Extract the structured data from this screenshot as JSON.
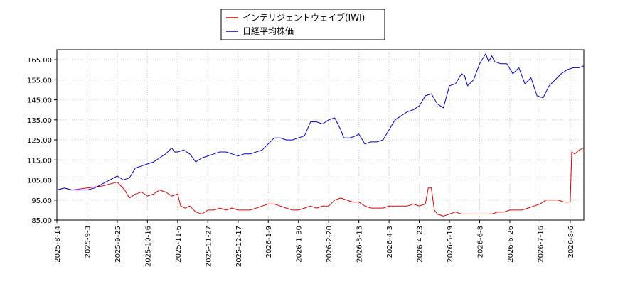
{
  "chart_data": {
    "type": "line",
    "grid": true,
    "legend_position": "top-center",
    "xlabel": "",
    "ylabel": "",
    "ylim": [
      85,
      170
    ],
    "y_ticks": [
      85.0,
      95.0,
      105.0,
      115.0,
      125.0,
      135.0,
      145.0,
      155.0,
      165.0
    ],
    "y_tick_labels": [
      "85.00",
      "95.00",
      "105.00",
      "115.00",
      "125.00",
      "135.00",
      "145.00",
      "155.00",
      "165.00"
    ],
    "x_tick_labels": [
      "2025-8-14",
      "2025-9-3",
      "2025-9-25",
      "2025-10-16",
      "2025-11-6",
      "2025-11-27",
      "2025-12-17",
      "2026-1-9",
      "2026-1-30",
      "2026-2-20",
      "2026-3-13",
      "2026-4-3",
      "2026-4-23",
      "2026-5-19",
      "2026-6-8",
      "2026-6-26",
      "2026-7-16",
      "2026-8-6"
    ],
    "x_tick_index": [
      0,
      20,
      40,
      60,
      80,
      100,
      120,
      140,
      160,
      180,
      200,
      220,
      240,
      260,
      280,
      300,
      320,
      340
    ],
    "x_max_index": 349,
    "series": [
      {
        "name": "インテリジェントウェイブ(IWI)",
        "color": "#dd0000",
        "points": [
          [
            0,
            100
          ],
          [
            5,
            101
          ],
          [
            10,
            100
          ],
          [
            15,
            100.5
          ],
          [
            20,
            101
          ],
          [
            25,
            101.5
          ],
          [
            30,
            102
          ],
          [
            35,
            103
          ],
          [
            40,
            104
          ],
          [
            45,
            100
          ],
          [
            48,
            96
          ],
          [
            52,
            98
          ],
          [
            56,
            99
          ],
          [
            60,
            97
          ],
          [
            64,
            98
          ],
          [
            68,
            100
          ],
          [
            72,
            99
          ],
          [
            76,
            97
          ],
          [
            80,
            98
          ],
          [
            82,
            92
          ],
          [
            85,
            91
          ],
          [
            88,
            92
          ],
          [
            92,
            89
          ],
          [
            96,
            88
          ],
          [
            100,
            90
          ],
          [
            104,
            90
          ],
          [
            108,
            91
          ],
          [
            112,
            90
          ],
          [
            116,
            91
          ],
          [
            120,
            90
          ],
          [
            124,
            90
          ],
          [
            128,
            90
          ],
          [
            132,
            91
          ],
          [
            136,
            92
          ],
          [
            140,
            93
          ],
          [
            144,
            93
          ],
          [
            148,
            92
          ],
          [
            152,
            91
          ],
          [
            156,
            90
          ],
          [
            160,
            90
          ],
          [
            164,
            91
          ],
          [
            168,
            92
          ],
          [
            172,
            91
          ],
          [
            176,
            92
          ],
          [
            180,
            92
          ],
          [
            184,
            95
          ],
          [
            188,
            96
          ],
          [
            192,
            95
          ],
          [
            196,
            94
          ],
          [
            200,
            94
          ],
          [
            204,
            92
          ],
          [
            208,
            91
          ],
          [
            212,
            91
          ],
          [
            216,
            91
          ],
          [
            220,
            92
          ],
          [
            224,
            92
          ],
          [
            228,
            92
          ],
          [
            232,
            92
          ],
          [
            236,
            93
          ],
          [
            240,
            92
          ],
          [
            244,
            93
          ],
          [
            246,
            101
          ],
          [
            248,
            101
          ],
          [
            250,
            90
          ],
          [
            252,
            88
          ],
          [
            256,
            87
          ],
          [
            260,
            88
          ],
          [
            264,
            89
          ],
          [
            268,
            88
          ],
          [
            272,
            88
          ],
          [
            276,
            88
          ],
          [
            280,
            88
          ],
          [
            284,
            88
          ],
          [
            288,
            88
          ],
          [
            292,
            89
          ],
          [
            296,
            89
          ],
          [
            300,
            90
          ],
          [
            304,
            90
          ],
          [
            308,
            90
          ],
          [
            312,
            91
          ],
          [
            316,
            92
          ],
          [
            320,
            93
          ],
          [
            324,
            95
          ],
          [
            328,
            95
          ],
          [
            332,
            95
          ],
          [
            336,
            94
          ],
          [
            340,
            94
          ],
          [
            341,
            119
          ],
          [
            343,
            118
          ],
          [
            346,
            120
          ],
          [
            349,
            121
          ]
        ]
      },
      {
        "name": "日経平均株価",
        "color": "#0000cc",
        "points": [
          [
            0,
            100
          ],
          [
            5,
            101
          ],
          [
            10,
            100
          ],
          [
            15,
            100
          ],
          [
            20,
            100
          ],
          [
            25,
            101
          ],
          [
            30,
            103
          ],
          [
            35,
            105
          ],
          [
            40,
            107
          ],
          [
            44,
            105
          ],
          [
            48,
            106
          ],
          [
            52,
            111
          ],
          [
            56,
            112
          ],
          [
            60,
            113
          ],
          [
            64,
            114
          ],
          [
            68,
            116
          ],
          [
            72,
            118
          ],
          [
            76,
            121
          ],
          [
            78,
            119
          ],
          [
            80,
            119
          ],
          [
            84,
            120
          ],
          [
            88,
            118
          ],
          [
            92,
            114
          ],
          [
            96,
            116
          ],
          [
            100,
            117
          ],
          [
            104,
            118
          ],
          [
            108,
            119
          ],
          [
            112,
            119
          ],
          [
            116,
            118
          ],
          [
            120,
            117
          ],
          [
            124,
            118
          ],
          [
            128,
            118
          ],
          [
            132,
            119
          ],
          [
            136,
            120
          ],
          [
            140,
            123
          ],
          [
            144,
            126
          ],
          [
            148,
            126
          ],
          [
            152,
            125
          ],
          [
            156,
            125
          ],
          [
            160,
            126
          ],
          [
            164,
            127
          ],
          [
            168,
            134
          ],
          [
            172,
            134
          ],
          [
            176,
            133
          ],
          [
            180,
            135
          ],
          [
            184,
            136
          ],
          [
            188,
            130
          ],
          [
            190,
            126
          ],
          [
            194,
            126
          ],
          [
            198,
            127
          ],
          [
            200,
            128
          ],
          [
            204,
            123
          ],
          [
            208,
            124
          ],
          [
            212,
            124
          ],
          [
            216,
            125
          ],
          [
            220,
            130
          ],
          [
            224,
            135
          ],
          [
            228,
            137
          ],
          [
            232,
            139
          ],
          [
            236,
            140
          ],
          [
            240,
            142
          ],
          [
            244,
            147
          ],
          [
            248,
            148
          ],
          [
            252,
            143
          ],
          [
            256,
            141
          ],
          [
            260,
            152
          ],
          [
            264,
            153
          ],
          [
            268,
            158
          ],
          [
            270,
            157
          ],
          [
            272,
            152
          ],
          [
            276,
            155
          ],
          [
            280,
            163
          ],
          [
            284,
            168
          ],
          [
            286,
            164
          ],
          [
            288,
            167
          ],
          [
            290,
            164
          ],
          [
            294,
            163
          ],
          [
            298,
            163
          ],
          [
            302,
            158
          ],
          [
            306,
            161
          ],
          [
            310,
            153
          ],
          [
            314,
            156
          ],
          [
            318,
            147
          ],
          [
            322,
            146
          ],
          [
            326,
            152
          ],
          [
            330,
            155
          ],
          [
            334,
            158
          ],
          [
            338,
            160
          ],
          [
            342,
            161
          ],
          [
            346,
            161
          ],
          [
            349,
            162
          ]
        ]
      }
    ]
  }
}
